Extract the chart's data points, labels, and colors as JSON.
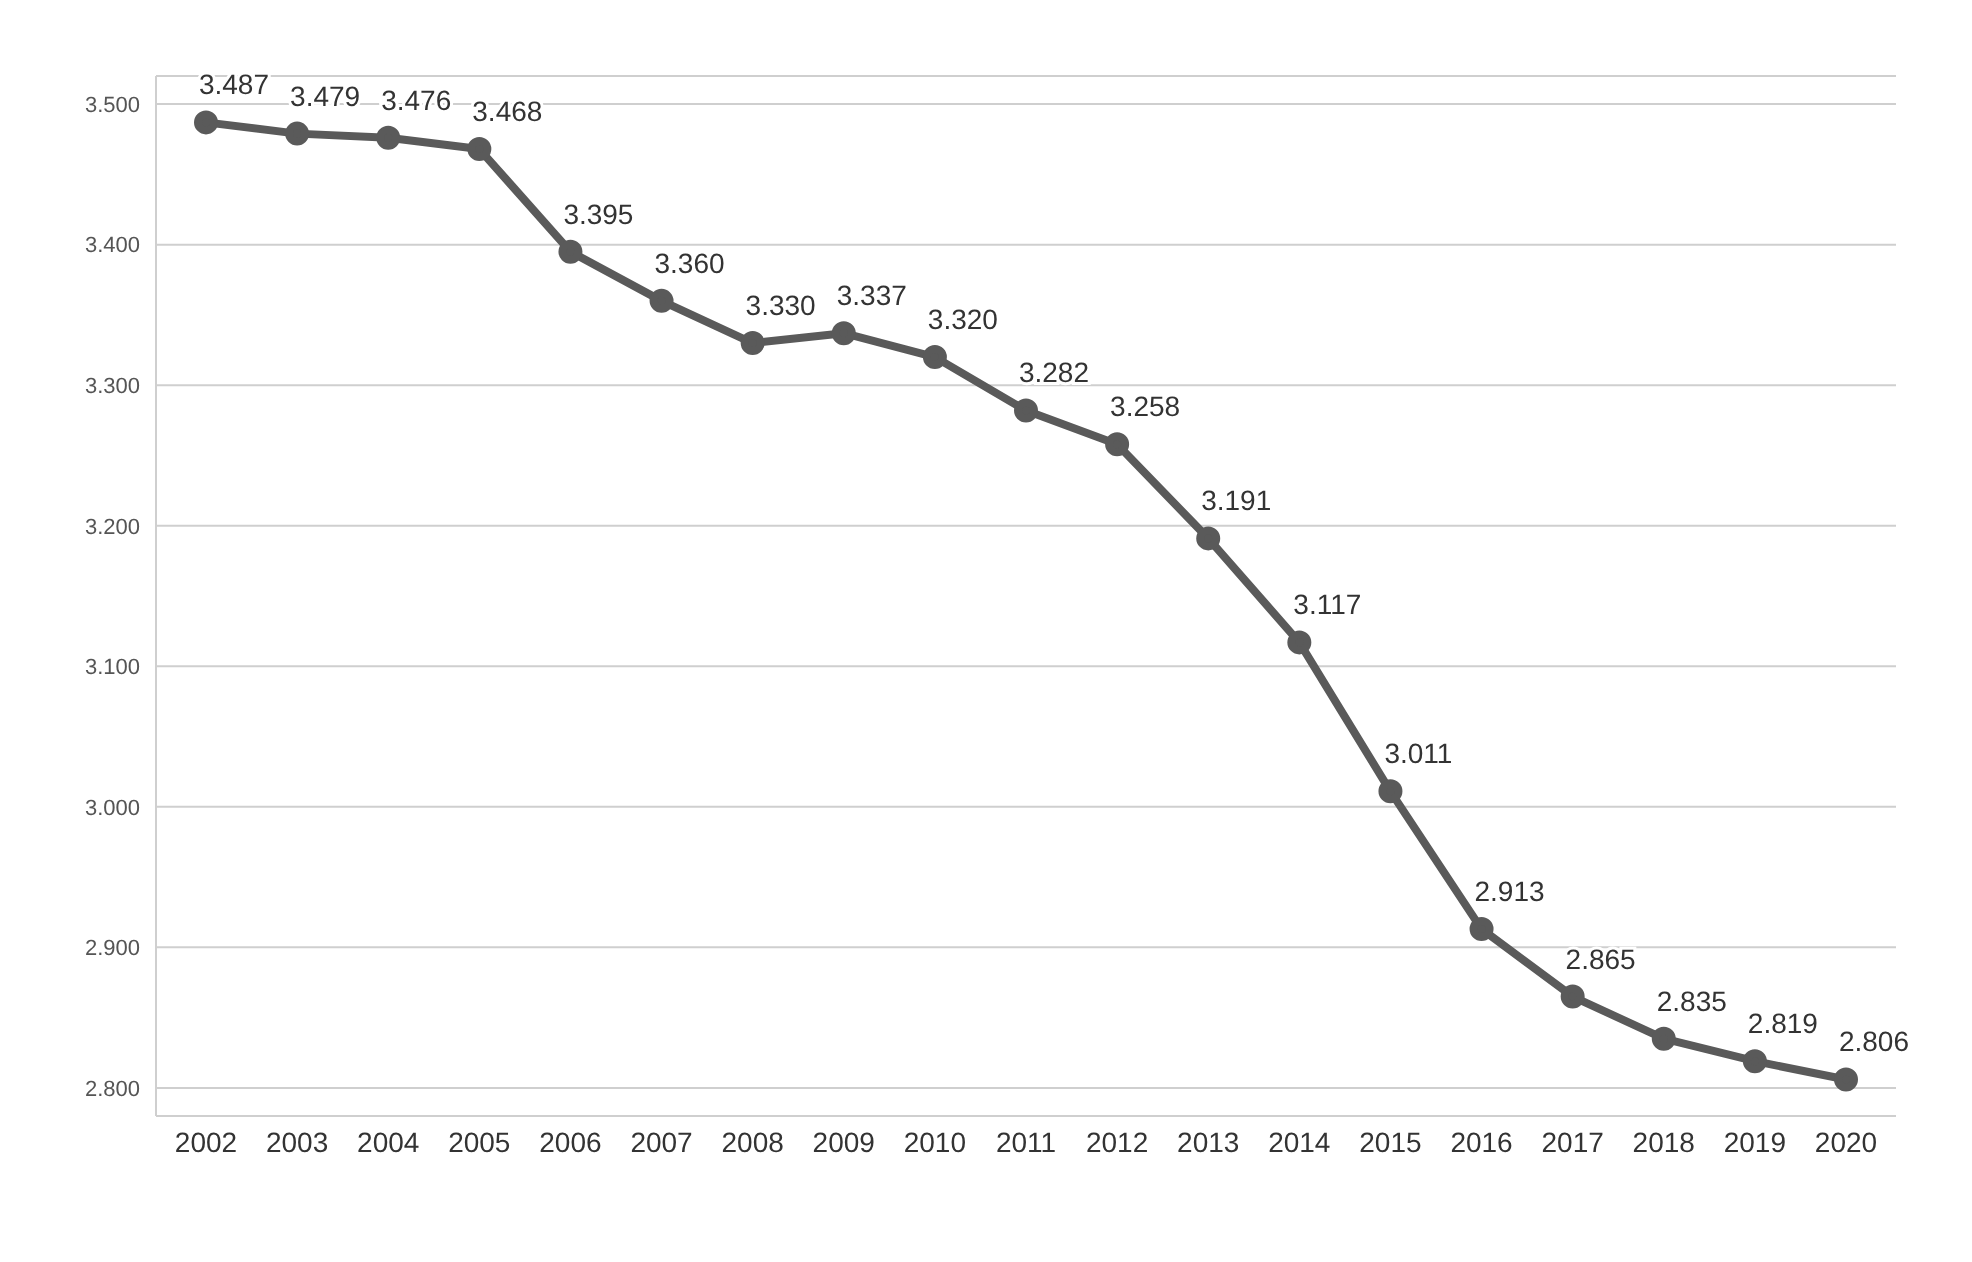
{
  "chart_data": {
    "type": "line",
    "categories": [
      "2002",
      "2003",
      "2004",
      "2005",
      "2006",
      "2007",
      "2008",
      "2009",
      "2010",
      "2011",
      "2012",
      "2013",
      "2014",
      "2015",
      "2016",
      "2017",
      "2018",
      "2019",
      "2020"
    ],
    "series": [
      {
        "color": "#5a5a5a",
        "values": [
          3.487,
          3.479,
          3.476,
          3.468,
          3.395,
          3.36,
          3.33,
          3.337,
          3.32,
          3.282,
          3.258,
          3.191,
          3.117,
          3.011,
          2.913,
          2.865,
          2.835,
          2.819,
          2.806
        ],
        "value_labels": [
          "3.487",
          "3.479",
          "3.476",
          "3.468",
          "3.395",
          "3.360",
          "3.330",
          "3.337",
          "3.320",
          "3.282",
          "3.258",
          "3.191",
          "3.117",
          "3.011",
          "2.913",
          "2.865",
          "2.835",
          "2.819",
          "2.806"
        ]
      }
    ],
    "ylim": [
      2.78,
      3.52
    ],
    "yticks": [
      {
        "value": 2.8,
        "label": "2.800"
      },
      {
        "value": 2.9,
        "label": "2.900"
      },
      {
        "value": 3.0,
        "label": "3.000"
      },
      {
        "value": 3.1,
        "label": "3.100"
      },
      {
        "value": 3.2,
        "label": "3.200"
      },
      {
        "value": 3.3,
        "label": "3.300"
      },
      {
        "value": 3.4,
        "label": "3.400"
      },
      {
        "value": 3.5,
        "label": "3.500"
      }
    ],
    "grid": "y",
    "marker": "circle",
    "line_style": "solid"
  }
}
